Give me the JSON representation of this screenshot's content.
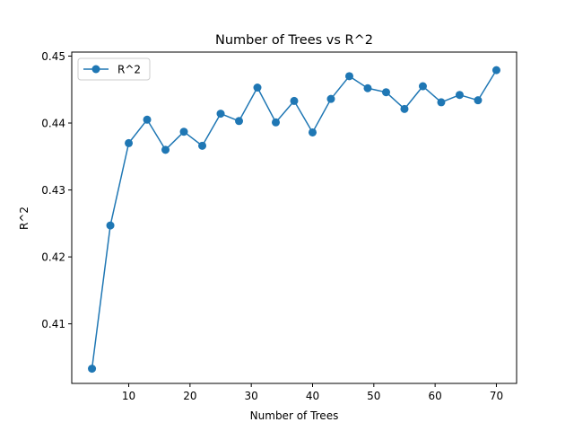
{
  "chart_data": {
    "type": "line",
    "title": "Number of Trees vs R^2",
    "xlabel": "Number of Trees",
    "ylabel": "R^2",
    "xlim": [
      0.7,
      73.3
    ],
    "ylim": [
      0.4011,
      0.4506
    ],
    "xticks": [
      10,
      20,
      30,
      40,
      50,
      60,
      70
    ],
    "yticks": [
      0.41,
      0.42,
      0.43,
      0.44,
      0.45
    ],
    "ytick_labels": [
      "0.41",
      "0.42",
      "0.43",
      "0.44",
      "0.45"
    ],
    "grid": false,
    "legend_position": "upper-left",
    "series": [
      {
        "name": "R^2",
        "color": "#1f77b4",
        "marker": "circle",
        "x": [
          4,
          7,
          10,
          13,
          16,
          19,
          22,
          25,
          28,
          31,
          34,
          37,
          40,
          43,
          46,
          49,
          52,
          55,
          58,
          61,
          64,
          67,
          70
        ],
        "y": [
          0.4033,
          0.4247,
          0.437,
          0.4405,
          0.436,
          0.4387,
          0.4366,
          0.4414,
          0.4403,
          0.4453,
          0.4401,
          0.4433,
          0.4386,
          0.4436,
          0.447,
          0.4452,
          0.4446,
          0.4421,
          0.4455,
          0.4431,
          0.4442,
          0.4434,
          0.4479
        ]
      }
    ]
  }
}
